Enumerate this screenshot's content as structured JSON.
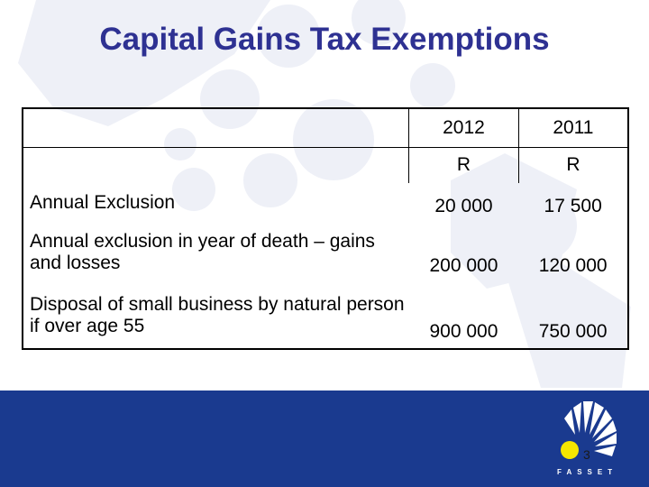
{
  "slide": {
    "title": "Capital Gains Tax Exemptions",
    "page_number": "3"
  },
  "table": {
    "years": [
      "2012",
      "2011"
    ],
    "currency": [
      "R",
      "R"
    ],
    "rows": [
      {
        "label": "Annual Exclusion",
        "v2012": "20 000",
        "v2011": "17 500"
      },
      {
        "label": "Annual exclusion in year of death – gains and losses",
        "v2012": "200 000",
        "v2011": "120 000"
      },
      {
        "label": "Disposal of small business by natural person if over age 55",
        "v2012": "900 000",
        "v2011": "750 000"
      }
    ]
  },
  "logo": {
    "text": "FASSET"
  },
  "colors": {
    "title": "#2e3192",
    "footer_band": "#1a3a8f",
    "logo_sun": "#f5e600"
  }
}
